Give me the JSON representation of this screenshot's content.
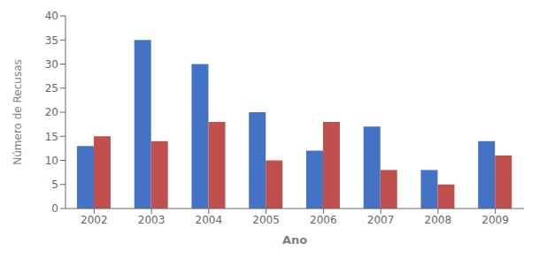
{
  "chart_data": {
    "type": "bar",
    "xlabel": "Ano",
    "ylabel": "Número de Recusas",
    "categories": [
      "2002",
      "2003",
      "2004",
      "2005",
      "2006",
      "2007",
      "2008",
      "2009"
    ],
    "series": [
      {
        "color": "#4472C4",
        "values": [
          13,
          35,
          30,
          20,
          12,
          17,
          8,
          14
        ]
      },
      {
        "color": "#C0504D",
        "values": [
          15,
          14,
          18,
          10,
          18,
          8,
          5,
          11
        ]
      }
    ],
    "ylim": [
      0,
      40
    ],
    "yticks": [
      0,
      5,
      10,
      15,
      20,
      25,
      30,
      35,
      40
    ],
    "grid": false
  }
}
